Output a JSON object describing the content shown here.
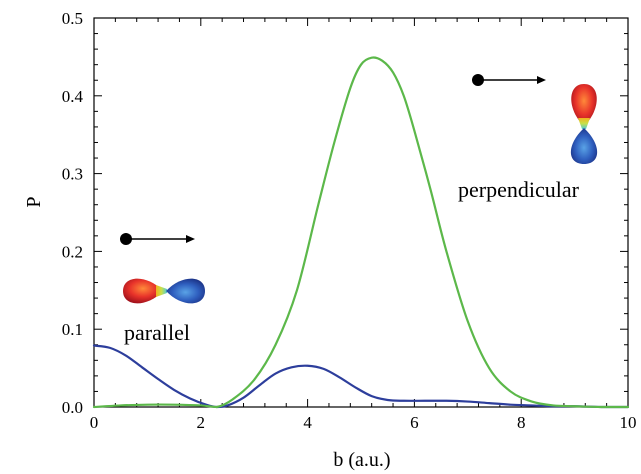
{
  "chart_data": {
    "type": "line",
    "xlabel": "b (a.u.)",
    "ylabel": "P",
    "xlim": [
      0,
      10
    ],
    "ylim": [
      0,
      0.5
    ],
    "x_ticks": [
      0,
      2,
      4,
      6,
      8,
      10
    ],
    "y_ticks": [
      0.0,
      0.1,
      0.2,
      0.3,
      0.4,
      0.5
    ],
    "x_tick_labels": [
      "0",
      "2",
      "4",
      "6",
      "8",
      "10"
    ],
    "y_tick_labels": [
      "0.0",
      "0.1",
      "0.2",
      "0.3",
      "0.4",
      "0.5"
    ],
    "minor_ticks_per_major": 4,
    "grid": false,
    "legend": "none",
    "series": [
      {
        "color": "#2d3e9c",
        "x": [
          0,
          0.3,
          0.6,
          0.9,
          1.2,
          1.5,
          1.8,
          2.1,
          2.3,
          2.5,
          2.8,
          3.1,
          3.4,
          3.7,
          4.0,
          4.3,
          4.6,
          4.9,
          5.2,
          5.5,
          5.8,
          6.2,
          6.6,
          7.0,
          7.4,
          7.8,
          8.2,
          8.6,
          9.0,
          9.5,
          10
        ],
        "y": [
          0.079,
          0.076,
          0.066,
          0.051,
          0.036,
          0.022,
          0.011,
          0.003,
          0.0,
          0.002,
          0.012,
          0.028,
          0.043,
          0.051,
          0.053,
          0.049,
          0.038,
          0.025,
          0.014,
          0.009,
          0.008,
          0.008,
          0.008,
          0.007,
          0.005,
          0.003,
          0.002,
          0.001,
          0.001,
          0.0,
          0.0
        ]
      },
      {
        "color": "#5cb84a",
        "x": [
          0,
          0.5,
          1.0,
          1.5,
          2.0,
          2.3,
          2.6,
          3.0,
          3.4,
          3.8,
          4.2,
          4.5,
          4.8,
          5.0,
          5.2,
          5.4,
          5.6,
          5.8,
          6.0,
          6.3,
          6.6,
          7.0,
          7.4,
          7.8,
          8.2,
          8.6,
          9.0,
          9.5,
          10
        ],
        "y": [
          0.0,
          0.002,
          0.003,
          0.003,
          0.002,
          0.0,
          0.01,
          0.035,
          0.08,
          0.15,
          0.26,
          0.34,
          0.41,
          0.44,
          0.449,
          0.445,
          0.43,
          0.4,
          0.355,
          0.28,
          0.2,
          0.11,
          0.05,
          0.02,
          0.007,
          0.002,
          0.001,
          0.0,
          0.0
        ]
      }
    ],
    "annotations": {
      "perpendicular": "perpendicular",
      "parallel": "parallel"
    }
  }
}
